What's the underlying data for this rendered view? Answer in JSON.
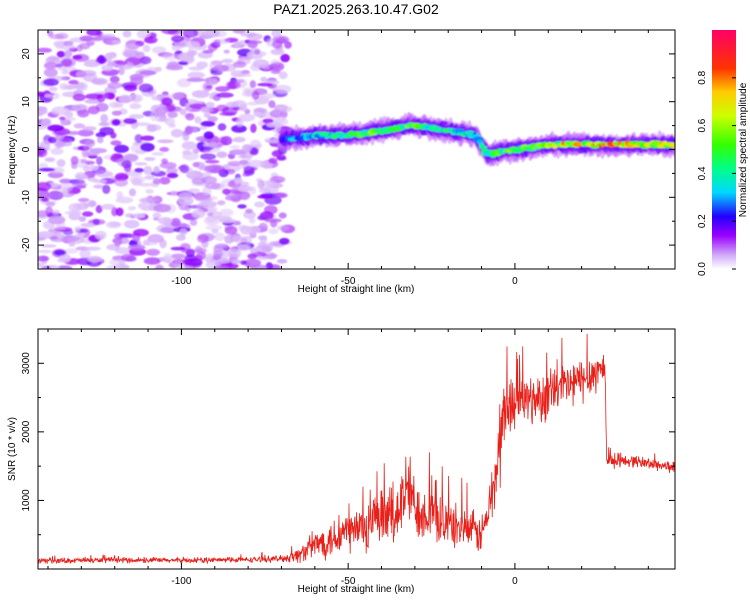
{
  "title": "PAZ1.2025.263.10.47.G02",
  "chart_data": [
    {
      "type": "heatmap",
      "xlabel": "Height of straight line (km)",
      "ylabel": "Frequency (Hz)",
      "xlim": [
        -143,
        48
      ],
      "ylim": [
        -25,
        25
      ],
      "xticks": [
        -100,
        -50,
        0
      ],
      "yticks": [
        -20,
        -10,
        0,
        10,
        20
      ],
      "colorbar": {
        "label": "Normalized spectral amplitude",
        "range": [
          0,
          1
        ],
        "ticks": [
          "0.0",
          "0.2",
          "0.4",
          "0.6",
          "0.8"
        ]
      },
      "ridge": {
        "x": [
          -70,
          -60,
          -50,
          -40,
          -30,
          -20,
          -12,
          -8,
          0,
          10,
          20,
          30,
          40,
          48
        ],
        "freq": [
          2,
          3,
          3,
          4,
          5,
          4,
          3,
          -1,
          0,
          1,
          1,
          1,
          1,
          1
        ],
        "peak_amplitude": [
          0.3,
          0.45,
          0.5,
          0.6,
          0.55,
          0.5,
          0.4,
          0.5,
          0.6,
          0.7,
          0.85,
          0.85,
          0.8,
          0.75
        ]
      },
      "noise_region_x": [
        -143,
        -70
      ]
    },
    {
      "type": "line",
      "xlabel": "Height of straight line (km)",
      "ylabel": "SNR (10 * v/v)",
      "xlim": [
        -143,
        48
      ],
      "ylim": [
        0,
        3500
      ],
      "xticks": [
        -100,
        -50,
        0
      ],
      "yticks": [
        1000,
        2000,
        3000
      ],
      "series": [
        {
          "name": "SNR",
          "color": "#e8201a",
          "x": [
            -143,
            -120,
            -100,
            -80,
            -70,
            -65,
            -60,
            -55,
            -50,
            -45,
            -40,
            -35,
            -32,
            -30,
            -25,
            -20,
            -15,
            -10,
            -8,
            -6,
            -4,
            -3,
            -2,
            0,
            5,
            10,
            15,
            20,
            25,
            27,
            27.5,
            30,
            35,
            40,
            48
          ],
          "mean": [
            120,
            130,
            125,
            135,
            150,
            200,
            350,
            450,
            550,
            600,
            700,
            850,
            1200,
            900,
            800,
            650,
            600,
            500,
            800,
            1300,
            2000,
            2400,
            2300,
            2500,
            2450,
            2550,
            2650,
            2750,
            2900,
            2950,
            1600,
            1560,
            1580,
            1540,
            1480
          ],
          "amp": [
            40,
            40,
            40,
            40,
            50,
            120,
            200,
            300,
            350,
            400,
            450,
            500,
            600,
            450,
            400,
            350,
            300,
            300,
            300,
            600,
            700,
            600,
            500,
            400,
            380,
            380,
            380,
            350,
            300,
            300,
            90,
            90,
            90,
            90,
            90
          ]
        }
      ]
    }
  ]
}
